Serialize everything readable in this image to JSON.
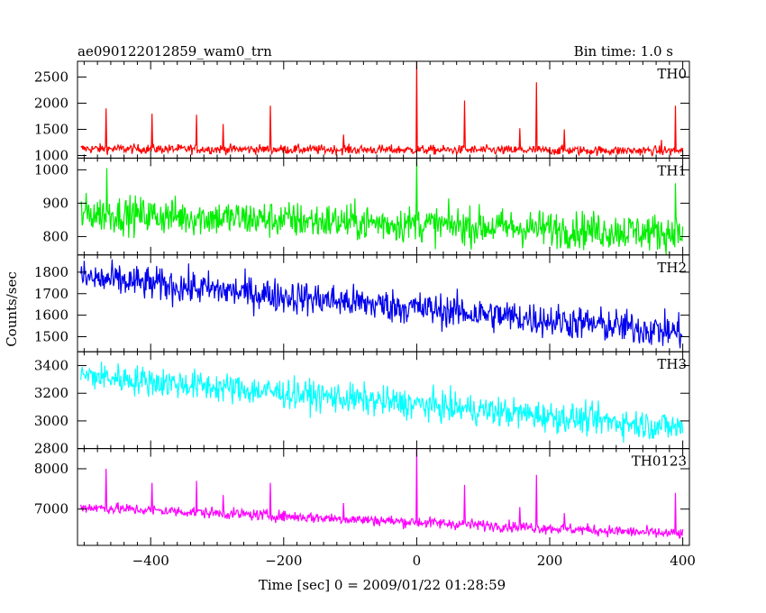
{
  "chart_data": {
    "type": "line",
    "title": "ae090122012859_wam0_trn",
    "bin_time": "Bin time: 1.0 s",
    "xlabel": "Time [sec] 0 = 2009/01/22 01:28:59",
    "ylabel": "Counts/sec",
    "xlim": [
      -510,
      410
    ],
    "x_ticks": [
      -400,
      -200,
      0,
      200,
      400
    ],
    "x_tick_labels": [
      "−400",
      "−200",
      "0",
      "200",
      "400"
    ],
    "grid": false,
    "panels": [
      {
        "name": "TH0",
        "color": "#ff0000",
        "ylim": [
          950,
          2800
        ],
        "y_ticks": [
          1000,
          1500,
          2000,
          2500
        ],
        "y_tick_labels": [
          "1000",
          "1500",
          "2000",
          "2500"
        ],
        "baseline_start": 1130,
        "baseline_end": 1090,
        "noise": 45,
        "spikes": [
          [
            -467,
            1900
          ],
          [
            -398,
            1800
          ],
          [
            -331,
            1780
          ],
          [
            -291,
            1600
          ],
          [
            -220,
            1950
          ],
          [
            -110,
            1400
          ],
          [
            0,
            2800
          ],
          [
            72,
            2050
          ],
          [
            155,
            1520
          ],
          [
            180,
            2400
          ],
          [
            222,
            1500
          ],
          [
            368,
            1300
          ],
          [
            389,
            1950
          ]
        ]
      },
      {
        "name": "TH1",
        "color": "#00ee00",
        "ylim": [
          745,
          1035
        ],
        "y_ticks": [
          800,
          900,
          1000
        ],
        "y_tick_labels": [
          "800",
          "900",
          "1000"
        ],
        "baseline_start": 870,
        "baseline_end": 810,
        "noise": 28,
        "spikes": [
          [
            -466,
            1005
          ],
          [
            0,
            1035
          ],
          [
            389,
            960
          ]
        ]
      },
      {
        "name": "TH2",
        "color": "#0000ee",
        "ylim": [
          1430,
          1880
        ],
        "y_ticks": [
          1500,
          1600,
          1700,
          1800
        ],
        "y_tick_labels": [
          "1500",
          "1600",
          "1700",
          "1800"
        ],
        "baseline_start": 1775,
        "baseline_end": 1520,
        "noise": 40,
        "spikes": []
      },
      {
        "name": "TH3",
        "color": "#00ffff",
        "ylim": [
          2800,
          3500
        ],
        "y_ticks": [
          2800,
          3000,
          3200,
          3400
        ],
        "y_tick_labels": [
          "2800",
          "3000",
          "3200",
          "3400"
        ],
        "baseline_start": 3330,
        "baseline_end": 2950,
        "noise": 55,
        "spikes": []
      },
      {
        "name": "TH0123",
        "color": "#ff00ff",
        "ylim": [
          6100,
          8500
        ],
        "y_ticks": [
          7000,
          8000
        ],
        "y_tick_labels": [
          "7000",
          "8000"
        ],
        "baseline_start": 7050,
        "baseline_end": 6380,
        "noise": 70,
        "spikes": [
          [
            -467,
            8000
          ],
          [
            -398,
            7650
          ],
          [
            -331,
            7700
          ],
          [
            -291,
            7350
          ],
          [
            -220,
            7650
          ],
          [
            -110,
            7150
          ],
          [
            0,
            8500
          ],
          [
            72,
            7600
          ],
          [
            155,
            7050
          ],
          [
            180,
            7850
          ],
          [
            222,
            6900
          ],
          [
            389,
            7400
          ]
        ]
      }
    ]
  }
}
